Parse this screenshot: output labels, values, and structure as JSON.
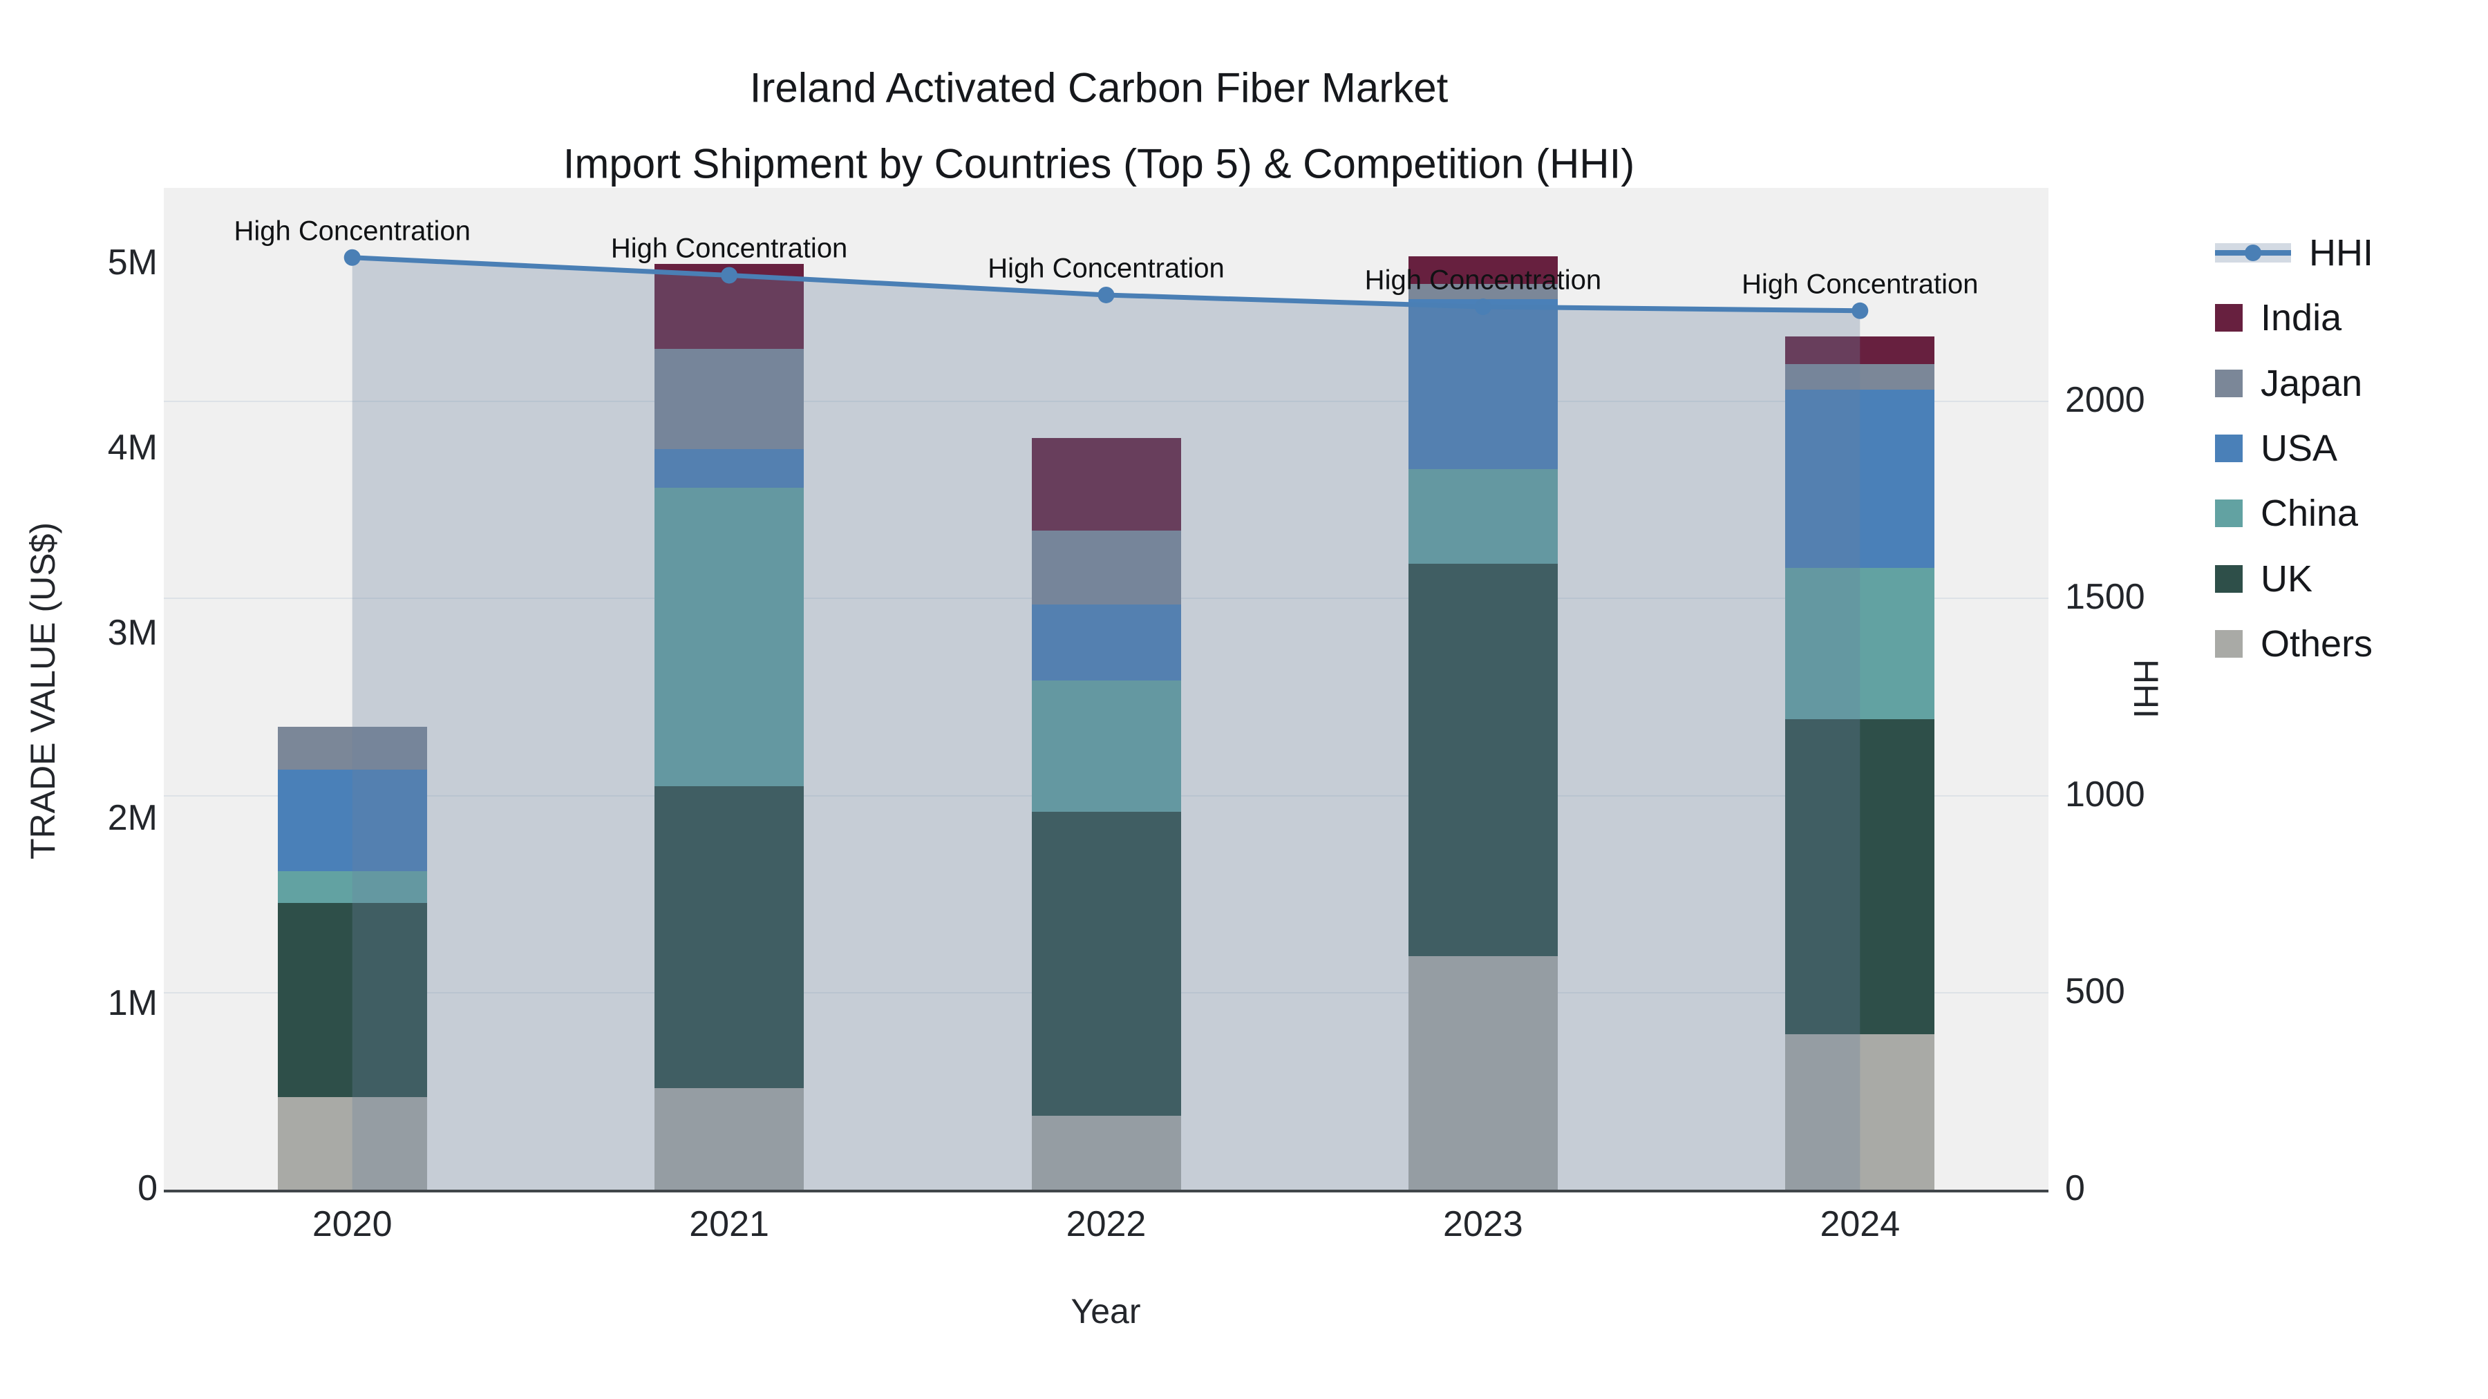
{
  "title": {
    "line1": "Ireland Activated Carbon Fiber Market",
    "line2": "Import Shipment by Countries (Top 5) & Competition (HHI)"
  },
  "axes": {
    "x": {
      "title": "Year",
      "ticks": [
        "2020",
        "2021",
        "2022",
        "2023",
        "2024"
      ]
    },
    "y_left": {
      "title": "TRADE VALUE (US$)",
      "ticks": [
        "0",
        "1M",
        "2M",
        "3M",
        "4M",
        "5M"
      ]
    },
    "y_right": {
      "title": "HHI",
      "ticks": [
        "0",
        "500",
        "1000",
        "1500",
        "2000"
      ]
    }
  },
  "legend": {
    "items": [
      {
        "label": "HHI",
        "type": "line",
        "color": "#4a7fb5"
      },
      {
        "label": "India",
        "type": "swatch",
        "color": "#67203f"
      },
      {
        "label": "Japan",
        "type": "swatch",
        "color": "#7b8798"
      },
      {
        "label": "USA",
        "type": "swatch",
        "color": "#4a80b8"
      },
      {
        "label": "China",
        "type": "swatch",
        "color": "#62a2a2"
      },
      {
        "label": "UK",
        "type": "swatch",
        "color": "#2e4f49"
      },
      {
        "label": "Others",
        "type": "swatch",
        "color": "#a9aaa6"
      }
    ]
  },
  "chart_data": {
    "type": "bar",
    "subtype": "stacked-bars-with-line-and-area-overlay",
    "title": "Ireland Activated Carbon Fiber Market — Import Shipment by Countries (Top 5) & Competition (HHI)",
    "categories": [
      "2020",
      "2021",
      "2022",
      "2023",
      "2024"
    ],
    "xlabel": "Year",
    "ylabel": "TRADE VALUE (US$)",
    "ylabel_right": "HHI",
    "ylim_left": [
      0,
      5410000
    ],
    "ylim_right": [
      0,
      2540
    ],
    "grid": "horizontal, right-axis 500 steps",
    "legend_position": "right",
    "stack_order_bottom_to_top": [
      "Others",
      "UK",
      "China",
      "USA",
      "Japan",
      "India"
    ],
    "series": [
      {
        "name": "India",
        "color": "#67203f",
        "values": [
          0,
          460000,
          500000,
          150000,
          150000
        ]
      },
      {
        "name": "Japan",
        "color": "#7b8798",
        "values": [
          230000,
          540000,
          400000,
          80000,
          140000
        ]
      },
      {
        "name": "USA",
        "color": "#4a80b8",
        "values": [
          550000,
          210000,
          410000,
          920000,
          960000
        ]
      },
      {
        "name": "China",
        "color": "#62a2a2",
        "values": [
          170000,
          1610000,
          710000,
          510000,
          820000
        ]
      },
      {
        "name": "UK",
        "color": "#2e4f49",
        "values": [
          1050000,
          1630000,
          1640000,
          2120000,
          1700000
        ]
      },
      {
        "name": "Others",
        "color": "#a9aaa6",
        "values": [
          500000,
          550000,
          400000,
          1260000,
          840000
        ]
      }
    ],
    "line_series": {
      "name": "HHI",
      "axis": "right",
      "color": "#4a7fb5",
      "area_fill": "rgba(106,128,158,0.31)",
      "values": [
        2365,
        2320,
        2270,
        2240,
        2230
      ]
    },
    "annotations": [
      {
        "text": "High Concentration",
        "category": "2020"
      },
      {
        "text": "High Concentration",
        "category": "2021"
      },
      {
        "text": "High Concentration",
        "category": "2022"
      },
      {
        "text": "High Concentration",
        "category": "2023"
      },
      {
        "text": "High Concentration",
        "category": "2024"
      }
    ]
  }
}
